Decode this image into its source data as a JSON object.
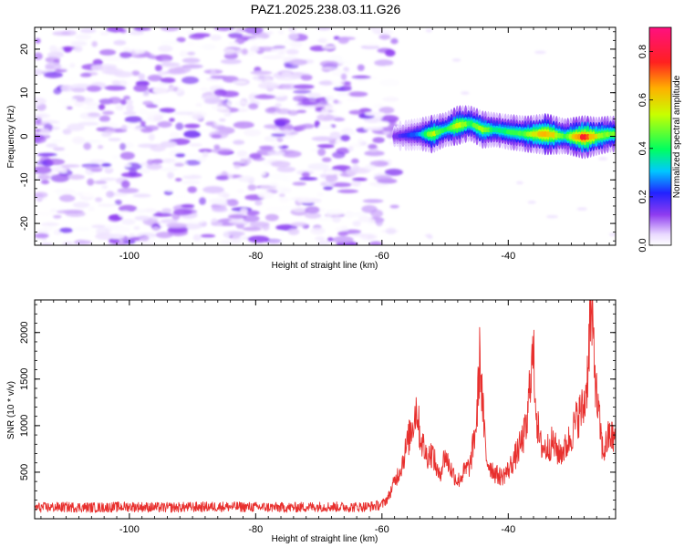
{
  "title": "PAZ1.2025.238.03.11.G26",
  "chart_data": [
    {
      "type": "heatmap",
      "xlabel": "Height of straight line (km)",
      "ylabel": "Frequency (Hz)",
      "xlim": [
        -115,
        -23
      ],
      "ylim": [
        -25,
        25
      ],
      "x_ticks": [
        "-100",
        "-80",
        "-60",
        "-40"
      ],
      "y_ticks": [
        "20",
        "10",
        "0",
        "-10",
        "-20"
      ],
      "colorbar": {
        "label": "Normalized spectral amplitude",
        "range": [
          0.0,
          0.9
        ],
        "ticks": [
          "0.0",
          "0.2",
          "0.4",
          "0.6",
          "0.8"
        ]
      },
      "noise_region": {
        "x": [
          -115,
          -58
        ],
        "y": [
          -25,
          25
        ],
        "amplitude_range": [
          0.0,
          0.15
        ]
      },
      "signal_ridge": [
        {
          "x": -58,
          "y": 0.0,
          "amplitude": 0.15
        },
        {
          "x": -54,
          "y": 0.5,
          "amplitude": 0.3
        },
        {
          "x": -52,
          "y": 0.5,
          "amplitude": 0.6
        },
        {
          "x": -50,
          "y": 1.5,
          "amplitude": 0.4
        },
        {
          "x": -48,
          "y": 2.5,
          "amplitude": 0.65
        },
        {
          "x": -46,
          "y": 3.0,
          "amplitude": 0.45
        },
        {
          "x": -44,
          "y": 1.5,
          "amplitude": 0.55
        },
        {
          "x": -42,
          "y": 1.5,
          "amplitude": 0.4
        },
        {
          "x": -40,
          "y": 1.0,
          "amplitude": 0.45
        },
        {
          "x": -37,
          "y": 0.5,
          "amplitude": 0.5
        },
        {
          "x": -34,
          "y": 0.5,
          "amplitude": 0.75
        },
        {
          "x": -31,
          "y": 0.0,
          "amplitude": 0.45
        },
        {
          "x": -28,
          "y": -0.2,
          "amplitude": 0.85
        },
        {
          "x": -26,
          "y": 0.0,
          "amplitude": 0.6
        },
        {
          "x": -24,
          "y": 0.5,
          "amplitude": 0.5
        }
      ]
    },
    {
      "type": "line",
      "xlabel": "Height of straight line (km)",
      "ylabel": "SNR (10 * v/v)",
      "xlim": [
        -115,
        -23
      ],
      "ylim": [
        0,
        2350
      ],
      "x_ticks": [
        "-100",
        "-80",
        "-60",
        "-40"
      ],
      "y_ticks": [
        "500",
        "1000",
        "1500",
        "2000"
      ],
      "color": "#e8302e",
      "series": [
        {
          "x": [
            -115,
            -110,
            -105,
            -100,
            -95,
            -90,
            -85,
            -80,
            -75,
            -70,
            -65,
            -62,
            -60,
            -59,
            -58,
            -57,
            -56,
            -55,
            -54.5,
            -54,
            -53,
            -52,
            -51,
            -50,
            -49,
            -48,
            -47,
            -46,
            -45,
            -44.5,
            -44,
            -43.5,
            -43,
            -42,
            -41,
            -40,
            -39,
            -38,
            -37,
            -36.5,
            -36,
            -35.5,
            -35,
            -34,
            -33,
            -32,
            -31,
            -30,
            -29,
            -28,
            -27.5,
            -27,
            -26.5,
            -26,
            -25,
            -24,
            -23
          ],
          "values": [
            120,
            125,
            120,
            130,
            120,
            125,
            130,
            125,
            120,
            130,
            125,
            130,
            150,
            230,
            400,
            550,
            800,
            1050,
            1220,
            900,
            680,
            700,
            450,
            680,
            520,
            400,
            500,
            580,
            1050,
            1750,
            1150,
            650,
            580,
            480,
            450,
            520,
            650,
            800,
            1000,
            1580,
            1750,
            1100,
            800,
            750,
            820,
            700,
            750,
            900,
            1100,
            1200,
            1500,
            2200,
            1900,
            1300,
            700,
            900,
            850
          ]
        }
      ]
    }
  ]
}
